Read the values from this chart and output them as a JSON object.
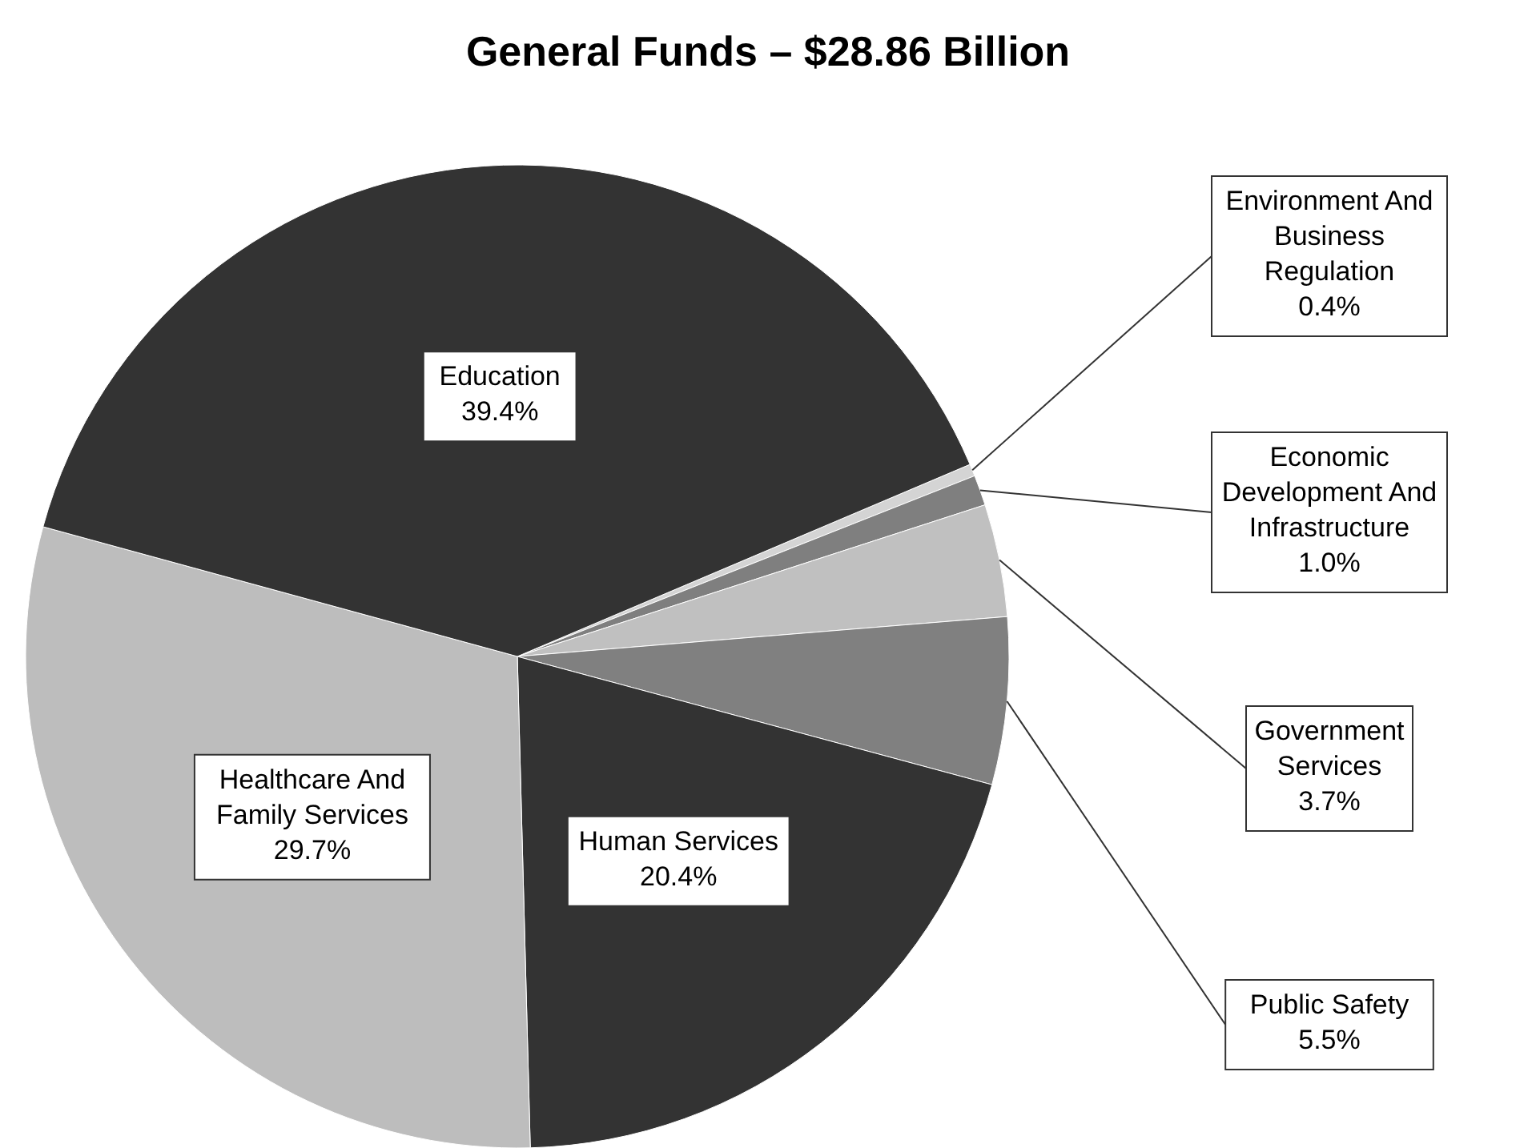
{
  "chart_data": {
    "type": "pie",
    "title": "General Funds – $28.86 Billion",
    "categories": [
      "Environment And Business Regulation",
      "Economic Development And Infrastructure",
      "Government Services",
      "Public Safety",
      "Human Services",
      "Healthcare And Family Services",
      "Education"
    ],
    "values": [
      0.4,
      1.0,
      3.7,
      5.5,
      20.4,
      29.7,
      39.4
    ],
    "value_labels": [
      "0.4%",
      "1.0%",
      "3.7%",
      "5.5%",
      "20.4%",
      "29.7%",
      "39.4%"
    ],
    "colors": [
      "#d4d4d4",
      "#7f7f7f",
      "#c0c0c0",
      "#808080",
      "#333333",
      "#bdbdbd",
      "#333333"
    ],
    "legend": false
  }
}
